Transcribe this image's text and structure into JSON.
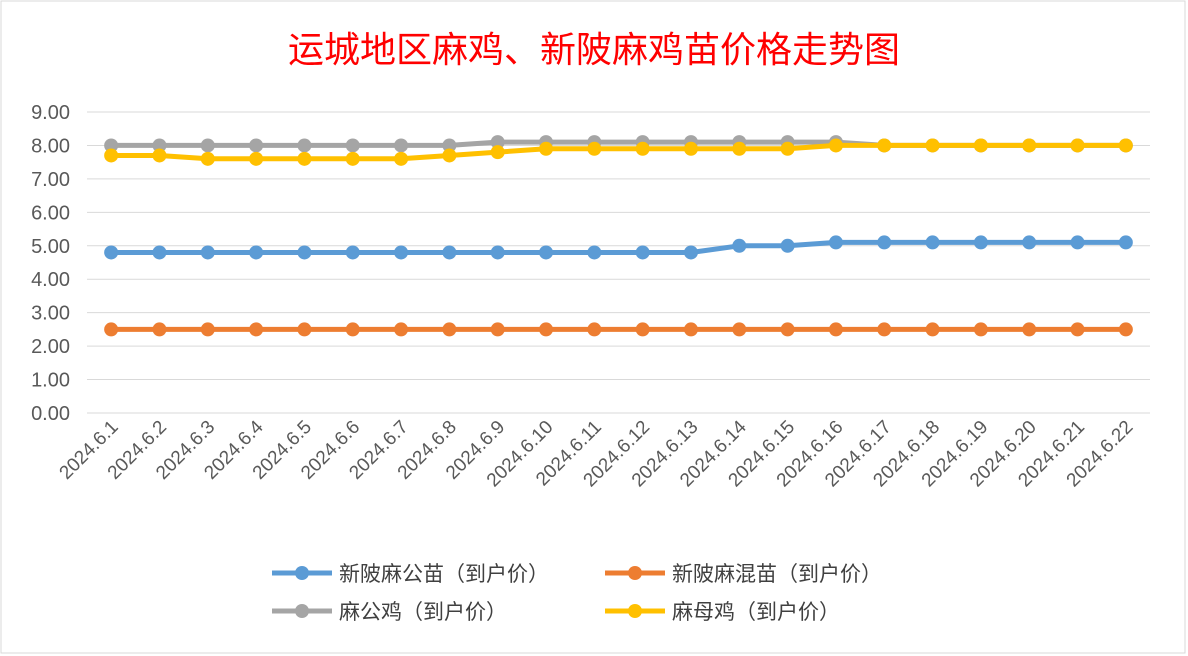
{
  "chart_data": {
    "type": "line",
    "title": "运城地区麻鸡、新陂麻鸡苗价格走势图",
    "xlabel": "",
    "ylabel": "",
    "ylim": [
      0,
      9
    ],
    "y_ticks": [
      "0.00",
      "1.00",
      "2.00",
      "3.00",
      "4.00",
      "5.00",
      "6.00",
      "7.00",
      "8.00",
      "9.00"
    ],
    "grid": true,
    "legend_position": "bottom",
    "categories": [
      "2024.6.1",
      "2024.6.2",
      "2024.6.3",
      "2024.6.4",
      "2024.6.5",
      "2024.6.6",
      "2024.6.7",
      "2024.6.8",
      "2024.6.9",
      "2024.6.10",
      "2024.6.11",
      "2024.6.12",
      "2024.6.13",
      "2024.6.14",
      "2024.6.15",
      "2024.6.16",
      "2024.6.17",
      "2024.6.18",
      "2024.6.19",
      "2024.6.20",
      "2024.6.21",
      "2024.6.22"
    ],
    "series": [
      {
        "name": "新陂麻公苗（到户价）",
        "color": "#5b9bd5",
        "values": [
          4.8,
          4.8,
          4.8,
          4.8,
          4.8,
          4.8,
          4.8,
          4.8,
          4.8,
          4.8,
          4.8,
          4.8,
          4.8,
          5.0,
          5.0,
          5.1,
          5.1,
          5.1,
          5.1,
          5.1,
          5.1,
          5.1
        ]
      },
      {
        "name": "新陂麻混苗（到户价）",
        "color": "#ed7d31",
        "values": [
          2.5,
          2.5,
          2.5,
          2.5,
          2.5,
          2.5,
          2.5,
          2.5,
          2.5,
          2.5,
          2.5,
          2.5,
          2.5,
          2.5,
          2.5,
          2.5,
          2.5,
          2.5,
          2.5,
          2.5,
          2.5,
          2.5
        ]
      },
      {
        "name": "麻公鸡（到户价）",
        "color": "#a5a5a5",
        "values": [
          8.0,
          8.0,
          8.0,
          8.0,
          8.0,
          8.0,
          8.0,
          8.0,
          8.1,
          8.1,
          8.1,
          8.1,
          8.1,
          8.1,
          8.1,
          8.1,
          8.0,
          8.0,
          8.0,
          8.0,
          8.0,
          8.0
        ]
      },
      {
        "name": "麻母鸡（到户价）",
        "color": "#ffc000",
        "values": [
          7.7,
          7.7,
          7.6,
          7.6,
          7.6,
          7.6,
          7.6,
          7.7,
          7.8,
          7.9,
          7.9,
          7.9,
          7.9,
          7.9,
          7.9,
          8.0,
          8.0,
          8.0,
          8.0,
          8.0,
          8.0,
          8.0
        ]
      }
    ]
  }
}
